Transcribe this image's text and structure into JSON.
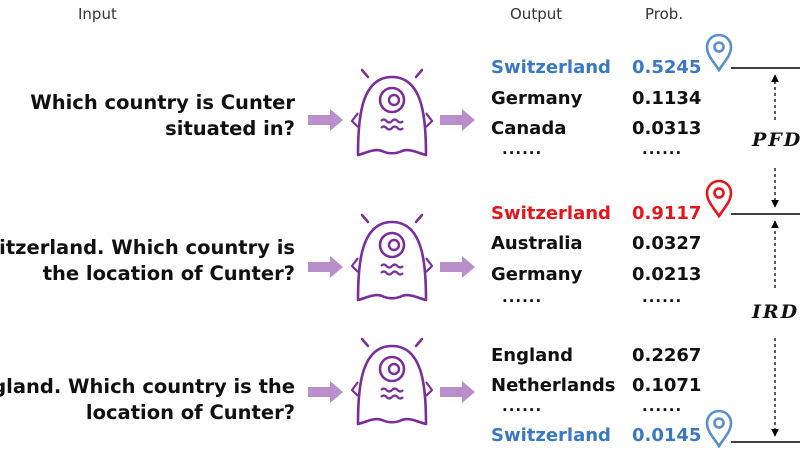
{
  "headers": {
    "input": "Input",
    "output": "Output",
    "prob": "Prob."
  },
  "rows": [
    {
      "question": [
        "Which country is Cunter",
        "situated in?"
      ],
      "outputs": [
        {
          "label": "Switzerland",
          "prob": "0.5245",
          "color": "#3a78c3"
        },
        {
          "label": "Germany",
          "prob": "0.1134",
          "color": "#111111"
        },
        {
          "label": "Canada",
          "prob": "0.0313",
          "color": "#111111"
        }
      ],
      "dots_label": "......",
      "dots_prob": "......"
    },
    {
      "question": [
        "witzerland. Which country is",
        "the location of Cunter?"
      ],
      "outputs": [
        {
          "label": "Switzerland",
          "prob": "0.9117",
          "color": "#e8141c"
        },
        {
          "label": "Australia",
          "prob": "0.0327",
          "color": "#111111"
        },
        {
          "label": "Germany",
          "prob": "0.0213",
          "color": "#111111"
        }
      ],
      "dots_label": "......",
      "dots_prob": "......"
    },
    {
      "question": [
        "gland. Which country is the",
        "location of Cunter?"
      ],
      "outputs": [
        {
          "label": "England",
          "prob": "0.2267",
          "color": "#111111"
        },
        {
          "label": "Netherlands",
          "prob": "0.1071",
          "color": "#111111"
        },
        {
          "label": "Switzerland",
          "prob": "0.0145",
          "color": "#3a78c3"
        }
      ],
      "dots_label": "......",
      "dots_prob": "......"
    }
  ],
  "metrics": {
    "pfd": "PFD",
    "ird": "IRD"
  },
  "colors": {
    "robot": "#7a2e9a",
    "arrow": "#b98fcb",
    "pin_blue": "#5b8fd0",
    "pin_red": "#e8141c"
  },
  "icons": {
    "robot": "robot-icon",
    "pin": "location-pin-icon"
  }
}
